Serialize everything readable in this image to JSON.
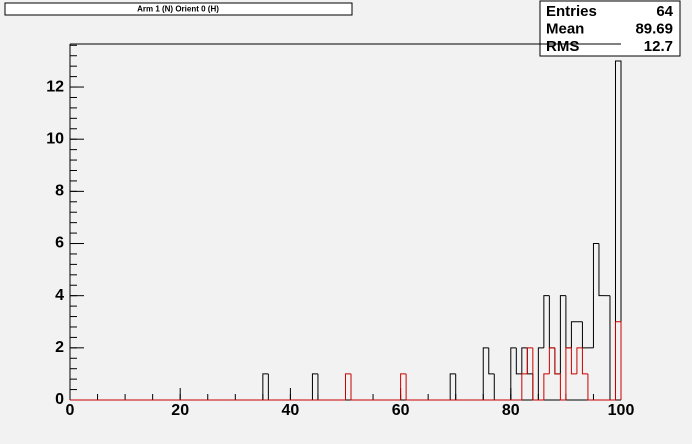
{
  "chart_data": {
    "type": "histogram",
    "title": "Arm 1 (N) Orient 0 (H)",
    "bins": [
      0,
      1,
      2,
      3,
      4,
      5,
      6,
      7,
      8,
      9,
      10,
      11,
      12,
      13,
      14,
      15,
      16,
      17,
      18,
      19,
      20,
      21,
      22,
      23,
      24,
      25,
      26,
      27,
      28,
      29,
      30,
      31,
      32,
      33,
      34,
      35,
      36,
      37,
      38,
      39,
      40,
      41,
      42,
      43,
      44,
      45,
      46,
      47,
      48,
      49,
      50,
      51,
      52,
      53,
      54,
      55,
      56,
      57,
      58,
      59,
      60,
      61,
      62,
      63,
      64,
      65,
      66,
      67,
      68,
      69,
      70,
      71,
      72,
      73,
      74,
      75,
      76,
      77,
      78,
      79,
      80,
      81,
      82,
      83,
      84,
      85,
      86,
      87,
      88,
      89,
      90,
      91,
      92,
      93,
      94,
      95,
      96,
      97,
      98,
      99,
      100
    ],
    "series": [
      {
        "color": "#000000",
        "values": [
          0,
          0,
          0,
          0,
          0,
          0,
          0,
          0,
          0,
          0,
          0,
          0,
          0,
          0,
          0,
          0,
          0,
          0,
          0,
          0,
          0,
          0,
          0,
          0,
          0,
          0,
          0,
          0,
          0,
          0,
          0,
          0,
          0,
          0,
          0,
          1,
          0,
          0,
          0,
          0,
          0,
          0,
          0,
          0,
          1,
          0,
          0,
          0,
          0,
          0,
          0,
          0,
          0,
          0,
          0,
          0,
          0,
          0,
          0,
          0,
          0,
          0,
          0,
          0,
          0,
          0,
          0,
          0,
          0,
          1,
          0,
          0,
          0,
          0,
          0,
          2,
          1,
          0,
          0,
          0,
          2,
          1,
          2,
          1,
          0,
          2,
          4,
          2,
          1,
          4,
          2,
          3,
          3,
          2,
          2,
          6,
          4,
          4,
          0,
          13
        ]
      },
      {
        "color": "#cc0000",
        "values": [
          0,
          0,
          0,
          0,
          0,
          0,
          0,
          0,
          0,
          0,
          0,
          0,
          0,
          0,
          0,
          0,
          0,
          0,
          0,
          0,
          0,
          0,
          0,
          0,
          0,
          0,
          0,
          0,
          0,
          0,
          0,
          0,
          0,
          0,
          0,
          0,
          0,
          0,
          0,
          0,
          0,
          0,
          0,
          0,
          0,
          0,
          0,
          0,
          0,
          0,
          1,
          0,
          0,
          0,
          0,
          0,
          0,
          0,
          0,
          0,
          1,
          0,
          0,
          0,
          0,
          0,
          0,
          0,
          0,
          0,
          0,
          0,
          0,
          0,
          0,
          0,
          0,
          0,
          0,
          0,
          0,
          0,
          1,
          2,
          0,
          0,
          1,
          2,
          1,
          0,
          2,
          1,
          2,
          1,
          0,
          0,
          0,
          0,
          0,
          3
        ]
      }
    ],
    "xlim": [
      0,
      100
    ],
    "xticks": [
      0,
      20,
      40,
      60,
      80,
      100
    ],
    "ylim": [
      0,
      13.65
    ],
    "yticks": [
      0,
      2,
      4,
      6,
      8,
      10,
      12
    ],
    "stats": [
      {
        "label": "Entries",
        "value": 64
      },
      {
        "label": "Mean",
        "value": 89.69
      },
      {
        "label": "RMS",
        "value": 12.7
      }
    ]
  }
}
